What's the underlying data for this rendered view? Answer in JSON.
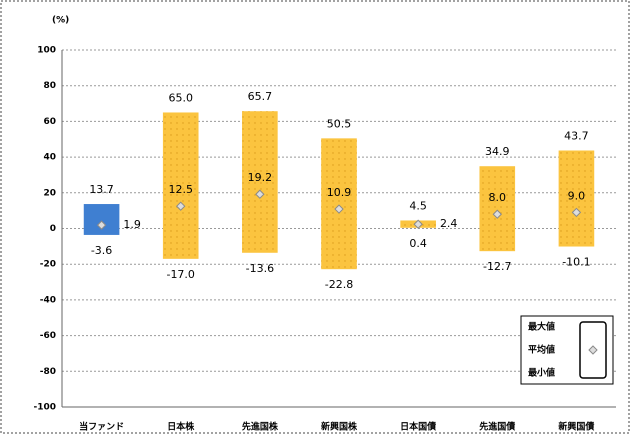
{
  "chart_data": {
    "type": "range-bar",
    "unit_label": "(%)",
    "categories": [
      "当ファンド",
      "日本株",
      "先進国株",
      "新興国株",
      "日本国債",
      "先進国債",
      "新興国債"
    ],
    "bar_colors": [
      "#3f7fd1",
      "#fbc43f",
      "#fbc43f",
      "#fbc43f",
      "#fbc43f",
      "#fbc43f",
      "#fbc43f"
    ],
    "marker_color": "#8a8a8a",
    "series": [
      {
        "name": "最大値",
        "values": [
          13.7,
          65.0,
          65.7,
          50.5,
          4.5,
          34.9,
          43.7
        ],
        "value_labels": [
          "13.7",
          "65.0",
          "65.7",
          "50.5",
          "4.5",
          "34.9",
          "43.7"
        ]
      },
      {
        "name": "平均値",
        "values": [
          1.9,
          12.5,
          19.2,
          10.9,
          2.4,
          8.0,
          9.0
        ],
        "value_labels": [
          "1.9",
          "12.5",
          "19.2",
          "10.9",
          "2.4",
          "8.0",
          "9.0"
        ]
      },
      {
        "name": "最小値",
        "values": [
          -3.6,
          -17.0,
          -13.6,
          -22.8,
          0.4,
          -12.7,
          -10.1
        ],
        "value_labels": [
          "-3.6",
          "-17.0",
          "-13.6",
          "-22.8",
          "0.4",
          "-12.7",
          "-10.1"
        ]
      }
    ],
    "ylim": [
      -100,
      100
    ],
    "yticks": [
      -100,
      -80,
      -60,
      -40,
      -20,
      0,
      20,
      40,
      60,
      80,
      100
    ],
    "grid": true
  }
}
